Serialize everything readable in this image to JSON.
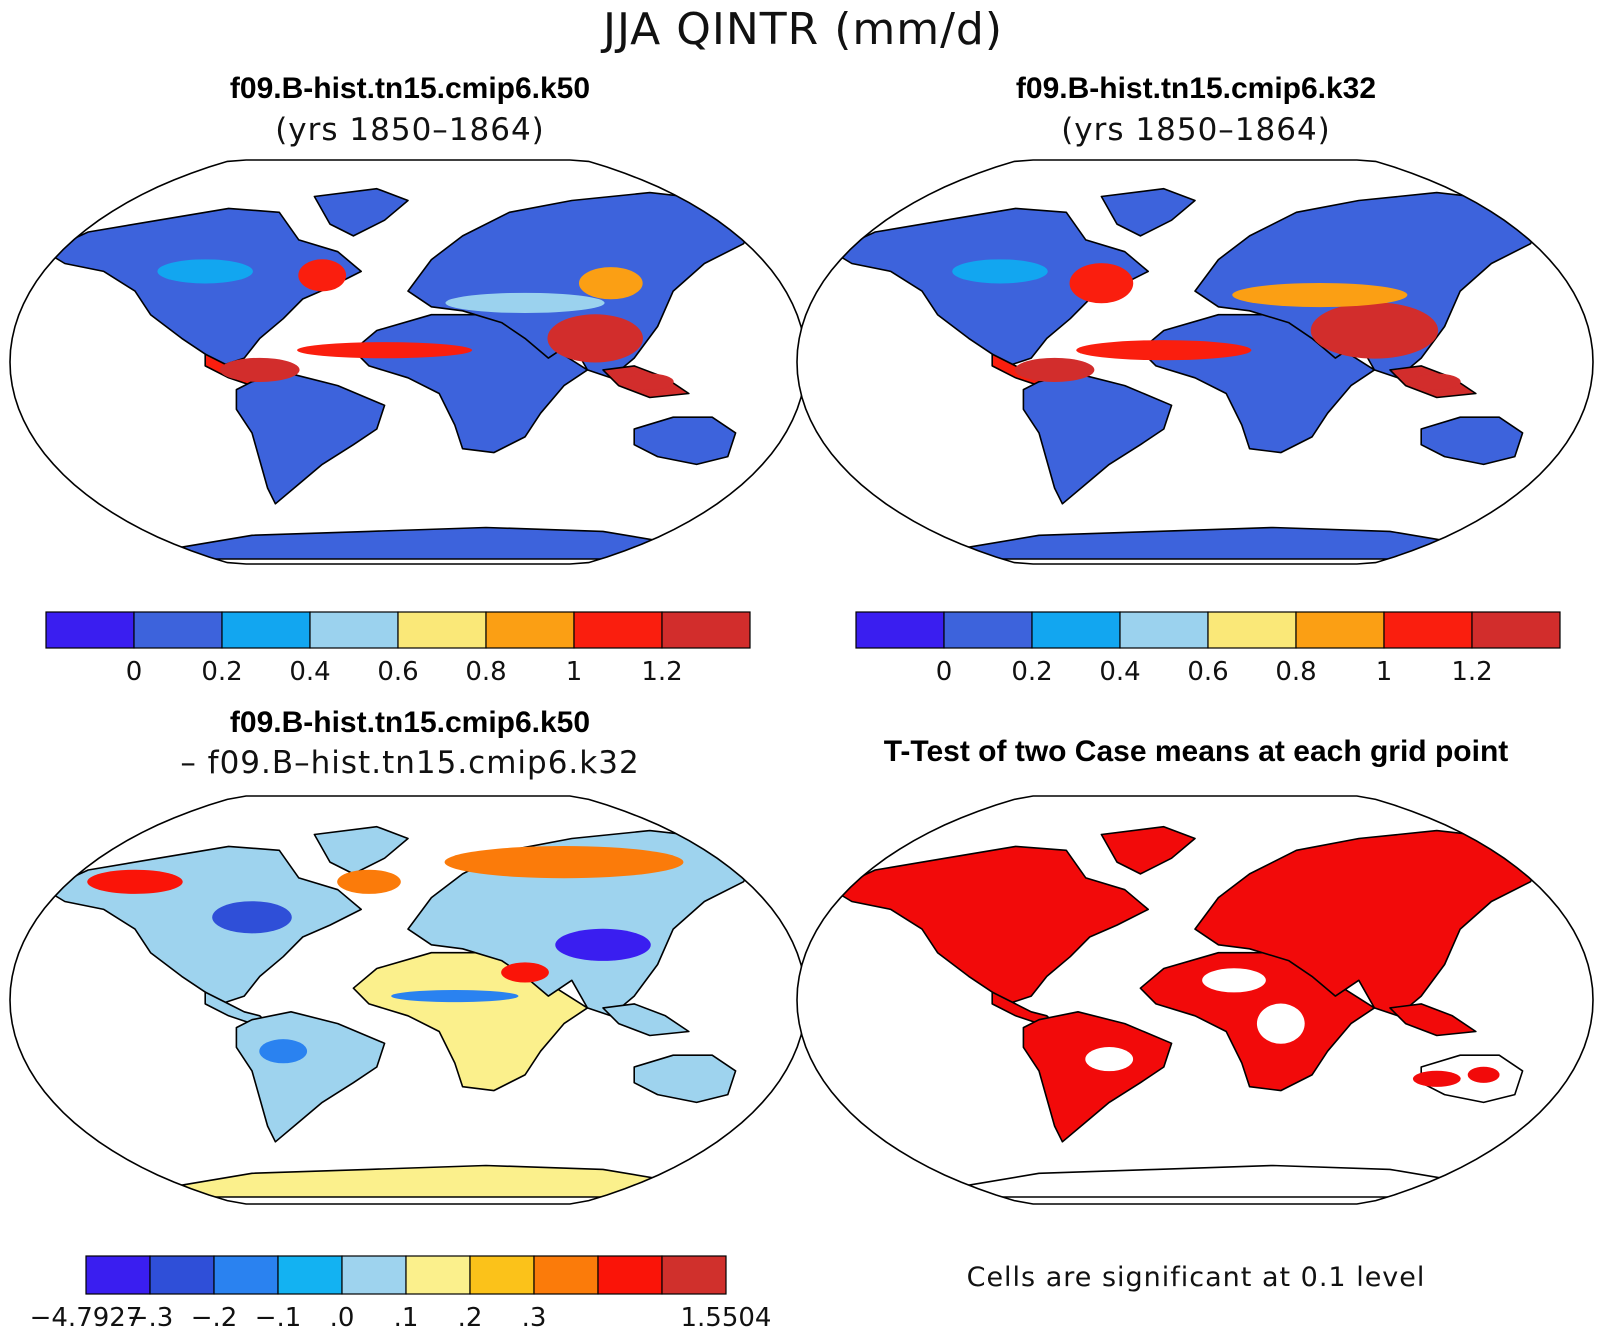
{
  "title": "JJA QINTR (mm/d)",
  "panels": [
    {
      "title": "f09.B-hist.tn15.cmip6.k50",
      "subtitle": "(yrs 1850–1864)"
    },
    {
      "title": "f09.B-hist.tn15.cmip6.k32",
      "subtitle": "(yrs 1850–1864)"
    },
    {
      "title": "f09.B-hist.tn15.cmip6.k50",
      "subtitle": "– f09.B–hist.tn15.cmip6.k32"
    },
    {
      "title": "T-Test of two Case means at each grid point",
      "subtitle": ""
    }
  ],
  "colorbar_abs": {
    "colors": [
      "#3a1ef0",
      "#3d63dc",
      "#12a6f0",
      "#9bd2ee",
      "#fae878",
      "#fb9f14",
      "#fa1e0e",
      "#d22d2c"
    ],
    "labels": [
      "0",
      "0.2",
      "0.4",
      "0.6",
      "0.8",
      "1",
      "1.2"
    ]
  },
  "colorbar_diff": {
    "colors": [
      "#3a1ef0",
      "#2f4fd8",
      "#2a82f0",
      "#13b2f2",
      "#9ed3ee",
      "#fbf08c",
      "#fbc21a",
      "#fb7b0a",
      "#fa1408",
      "#d0302c"
    ],
    "labels": [
      "−4.7927",
      "−.3",
      "−.2",
      "−.1",
      ".0",
      ".1",
      ".2",
      ".3",
      "1.5504"
    ]
  },
  "significance_note": "Cells are significant at 0.1 level",
  "colors": {
    "significant": "#f20a0a",
    "ocean": "#ffffff"
  }
}
